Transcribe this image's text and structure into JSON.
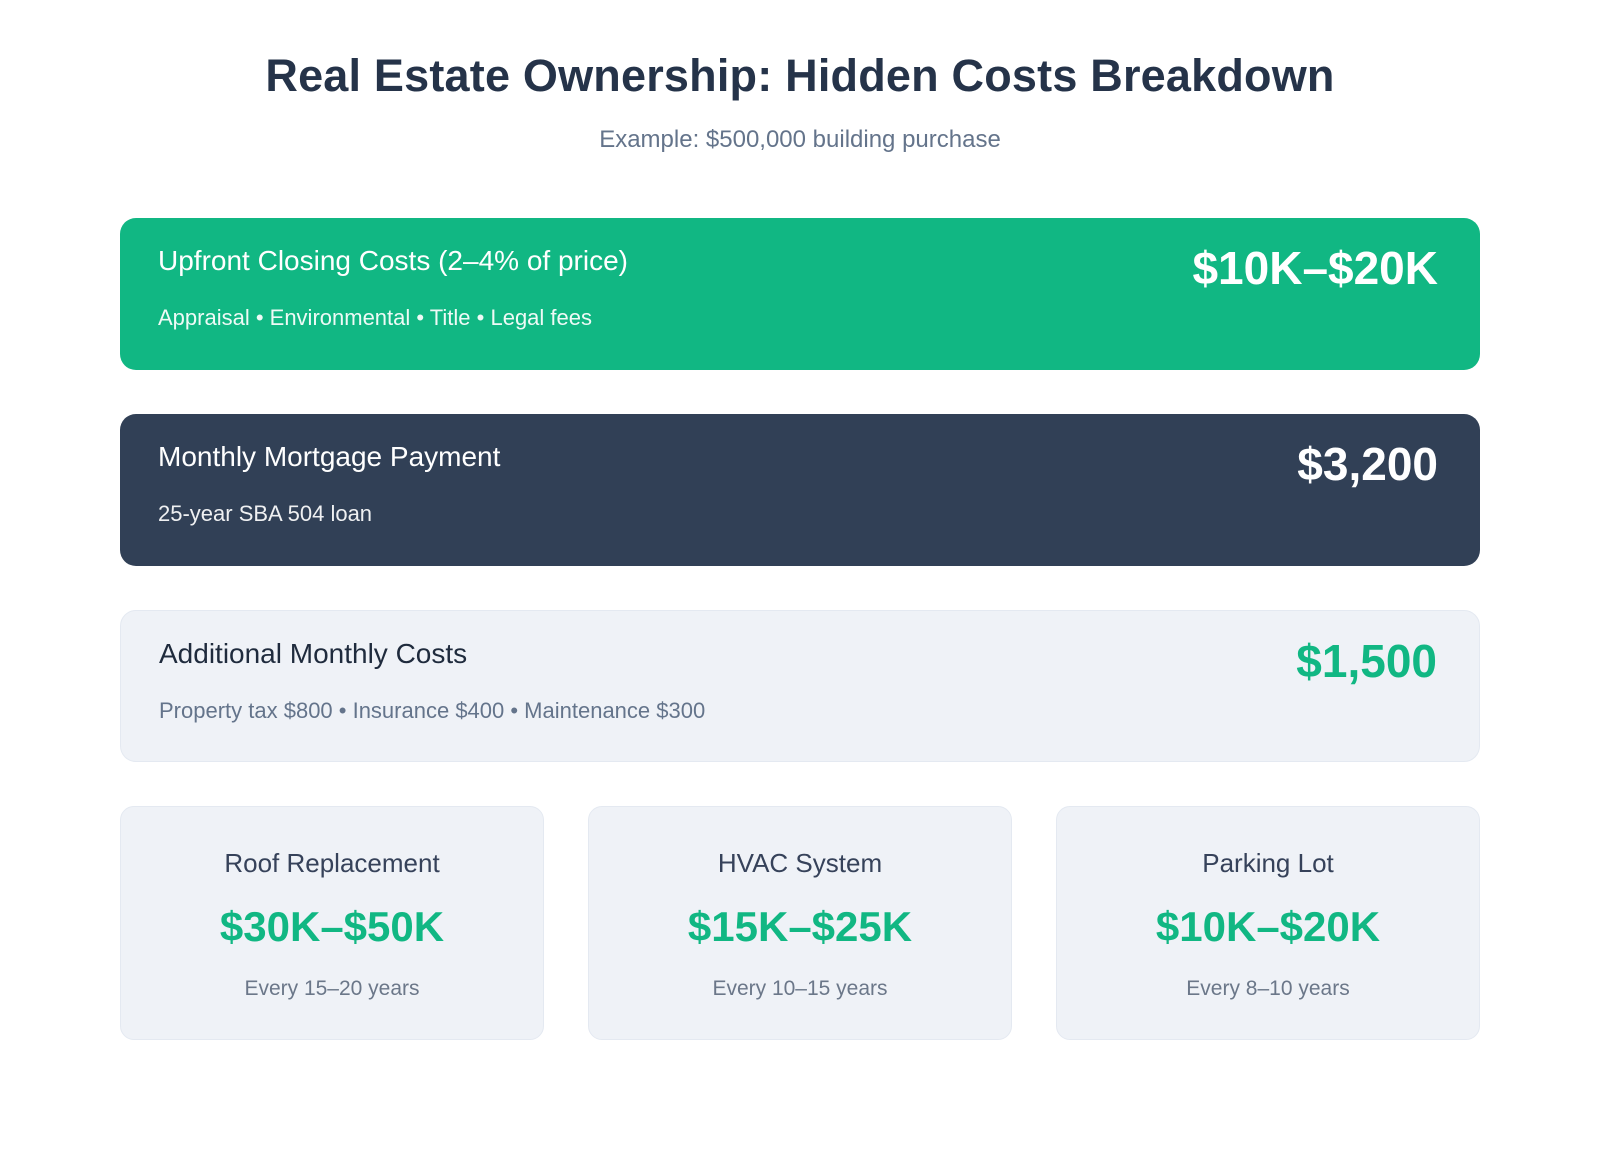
{
  "page": {
    "title": "Real Estate Ownership: Hidden Costs Breakdown",
    "subtitle": "Example: $500,000 building purchase"
  },
  "colors": {
    "accent_green": "#11b783",
    "navy": "#314056",
    "light_card_bg": "#eff2f7",
    "heading_text": "#253349",
    "muted_text": "#64748b"
  },
  "rows": [
    {
      "title": "Upfront Closing Costs (2–4% of price)",
      "detail": "Appraisal • Environmental • Title • Legal fees",
      "value": "$10K–$20K"
    },
    {
      "title": "Monthly Mortgage Payment",
      "detail": "25-year SBA 504 loan",
      "value": "$3,200"
    },
    {
      "title": "Additional Monthly Costs",
      "detail": "Property tax $800 • Insurance $400 • Maintenance $300",
      "value": "$1,500"
    }
  ],
  "capex_cards": [
    {
      "title": "Roof Replacement",
      "value": "$30K–$50K",
      "frequency": "Every 15–20 years"
    },
    {
      "title": "HVAC System",
      "value": "$15K–$25K",
      "frequency": "Every 10–15 years"
    },
    {
      "title": "Parking Lot",
      "value": "$10K–$20K",
      "frequency": "Every 8–10 years"
    }
  ]
}
